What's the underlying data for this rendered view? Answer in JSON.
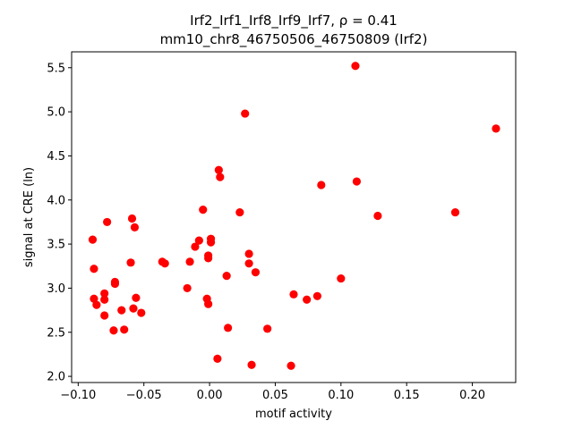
{
  "chart_data": {
    "type": "scatter",
    "title_line1": "Irf2_Irf1_Irf8_Irf9_Irf7, ρ = 0.41",
    "title_line2": "mm10_chr8_46750506_46750809 (Irf2)",
    "xlabel": "motif activity",
    "ylabel": "signal at CRE (ln)",
    "xlim": [
      -0.105,
      0.233
    ],
    "ylim": [
      1.93,
      5.68
    ],
    "xticks": [
      -0.1,
      -0.05,
      0.0,
      0.05,
      0.1,
      0.15,
      0.2
    ],
    "xtick_labels": [
      "−0.10",
      "−0.05",
      "0.00",
      "0.05",
      "0.10",
      "0.15",
      "0.20"
    ],
    "yticks": [
      2.0,
      2.5,
      3.0,
      3.5,
      4.0,
      4.5,
      5.0,
      5.5
    ],
    "ytick_labels": [
      "2.0",
      "2.5",
      "3.0",
      "3.5",
      "4.0",
      "4.5",
      "5.0",
      "5.5"
    ],
    "marker_color": "#ff0000",
    "points": [
      {
        "x": 0.111,
        "y": 5.52
      },
      {
        "x": 0.027,
        "y": 4.98
      },
      {
        "x": 0.218,
        "y": 4.81
      },
      {
        "x": 0.007,
        "y": 4.34
      },
      {
        "x": 0.008,
        "y": 4.26
      },
      {
        "x": 0.112,
        "y": 4.21
      },
      {
        "x": 0.085,
        "y": 4.17
      },
      {
        "x": -0.005,
        "y": 3.89
      },
      {
        "x": 0.187,
        "y": 3.86
      },
      {
        "x": 0.023,
        "y": 3.86
      },
      {
        "x": 0.128,
        "y": 3.82
      },
      {
        "x": -0.059,
        "y": 3.79
      },
      {
        "x": -0.078,
        "y": 3.75
      },
      {
        "x": -0.057,
        "y": 3.69
      },
      {
        "x": -0.089,
        "y": 3.55
      },
      {
        "x": 0.001,
        "y": 3.56
      },
      {
        "x": -0.008,
        "y": 3.54
      },
      {
        "x": 0.001,
        "y": 3.52
      },
      {
        "x": -0.011,
        "y": 3.47
      },
      {
        "x": 0.03,
        "y": 3.39
      },
      {
        "x": -0.001,
        "y": 3.37
      },
      {
        "x": -0.001,
        "y": 3.34
      },
      {
        "x": -0.036,
        "y": 3.3
      },
      {
        "x": -0.06,
        "y": 3.29
      },
      {
        "x": -0.034,
        "y": 3.28
      },
      {
        "x": -0.015,
        "y": 3.3
      },
      {
        "x": 0.03,
        "y": 3.28
      },
      {
        "x": -0.088,
        "y": 3.22
      },
      {
        "x": 0.035,
        "y": 3.18
      },
      {
        "x": 0.013,
        "y": 3.14
      },
      {
        "x": 0.1,
        "y": 3.11
      },
      {
        "x": -0.072,
        "y": 3.07
      },
      {
        "x": -0.072,
        "y": 3.05
      },
      {
        "x": -0.017,
        "y": 3.0
      },
      {
        "x": -0.08,
        "y": 2.94
      },
      {
        "x": 0.064,
        "y": 2.93
      },
      {
        "x": 0.082,
        "y": 2.91
      },
      {
        "x": -0.056,
        "y": 2.89
      },
      {
        "x": -0.088,
        "y": 2.88
      },
      {
        "x": -0.002,
        "y": 2.88
      },
      {
        "x": -0.08,
        "y": 2.87
      },
      {
        "x": 0.074,
        "y": 2.87
      },
      {
        "x": -0.001,
        "y": 2.82
      },
      {
        "x": -0.086,
        "y": 2.81
      },
      {
        "x": -0.058,
        "y": 2.77
      },
      {
        "x": -0.067,
        "y": 2.75
      },
      {
        "x": -0.052,
        "y": 2.72
      },
      {
        "x": -0.08,
        "y": 2.69
      },
      {
        "x": 0.014,
        "y": 2.55
      },
      {
        "x": 0.044,
        "y": 2.54
      },
      {
        "x": -0.065,
        "y": 2.53
      },
      {
        "x": -0.073,
        "y": 2.52
      },
      {
        "x": 0.006,
        "y": 2.2
      },
      {
        "x": 0.032,
        "y": 2.13
      },
      {
        "x": 0.062,
        "y": 2.12
      }
    ]
  }
}
